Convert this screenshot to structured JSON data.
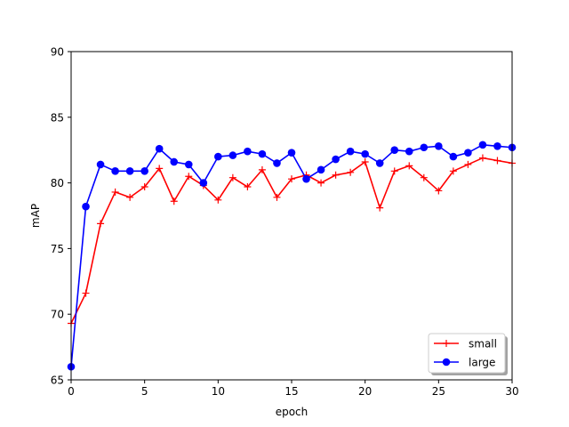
{
  "chart_data": {
    "type": "line",
    "title": "",
    "xlabel": "epoch",
    "ylabel": "mAP",
    "xlim": [
      0,
      30
    ],
    "ylim": [
      65,
      90
    ],
    "xticks": [
      0,
      5,
      10,
      15,
      20,
      25,
      30
    ],
    "yticks": [
      65,
      70,
      75,
      80,
      85,
      90
    ],
    "grid": false,
    "legend_position": "lower-right",
    "series": [
      {
        "name": "small",
        "color": "#ff0000",
        "marker": "plus",
        "x": [
          0,
          1,
          2,
          3,
          4,
          5,
          6,
          7,
          8,
          9,
          10,
          11,
          12,
          13,
          14,
          15,
          16,
          17,
          18,
          19,
          20,
          21,
          22,
          23,
          24,
          25,
          26,
          27,
          28,
          29,
          30
        ],
        "values": [
          69.3,
          71.6,
          76.9,
          79.3,
          78.9,
          79.7,
          81.1,
          78.6,
          80.5,
          79.8,
          78.7,
          80.4,
          79.7,
          81.0,
          78.9,
          80.3,
          80.6,
          80.0,
          80.6,
          80.8,
          81.6,
          78.1,
          80.9,
          81.3,
          80.4,
          79.4,
          80.9,
          81.4,
          81.9,
          81.7,
          81.5
        ]
      },
      {
        "name": "large",
        "color": "#0000ff",
        "marker": "circle",
        "x": [
          0,
          1,
          2,
          3,
          4,
          5,
          6,
          7,
          8,
          9,
          10,
          11,
          12,
          13,
          14,
          15,
          16,
          17,
          18,
          19,
          20,
          21,
          22,
          23,
          24,
          25,
          26,
          27,
          28,
          29,
          30
        ],
        "values": [
          66.0,
          78.2,
          81.4,
          80.9,
          80.9,
          80.9,
          82.6,
          81.6,
          81.4,
          80.0,
          82.0,
          82.1,
          82.4,
          82.2,
          81.5,
          82.3,
          80.3,
          81.0,
          81.8,
          82.4,
          82.2,
          81.5,
          82.5,
          82.4,
          82.7,
          82.8,
          82.0,
          82.3,
          82.9,
          82.8,
          82.7
        ]
      }
    ]
  }
}
